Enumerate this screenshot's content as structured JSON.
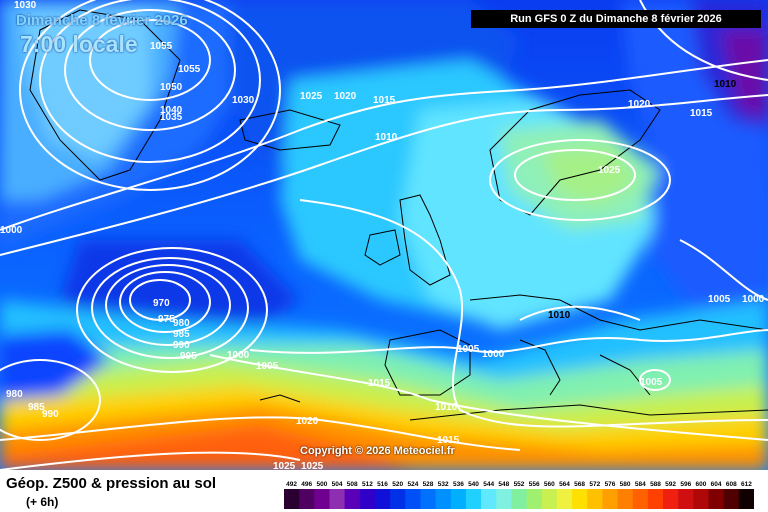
{
  "header": {
    "date_line": "Dimanche 8 février 2026",
    "time_line": "7:00 locale",
    "run_info": "Run GFS 0 Z du Dimanche 8 février 2026"
  },
  "footer": {
    "copyright": "Copyright © 2026 Meteociel.fr",
    "parameter_title": "Géop. Z500 & pression au sol",
    "lead_time": "(+ 6h)"
  },
  "legend": {
    "ticks": [
      "492",
      "496",
      "500",
      "504",
      "508",
      "512",
      "516",
      "520",
      "524",
      "528",
      "532",
      "536",
      "540",
      "544",
      "548",
      "552",
      "556",
      "560",
      "564",
      "568",
      "572",
      "576",
      "580",
      "584",
      "588",
      "592",
      "596",
      "600",
      "604",
      "608",
      "612"
    ],
    "colors": [
      "#2a0030",
      "#500060",
      "#700090",
      "#8d2fb0",
      "#5a00b8",
      "#3000c8",
      "#1010d8",
      "#0030e8",
      "#0050f8",
      "#0070ff",
      "#0090ff",
      "#00b0ff",
      "#20d0ff",
      "#60e8ff",
      "#80f0e0",
      "#80f0a0",
      "#a0f070",
      "#c8f050",
      "#f0f040",
      "#ffe000",
      "#ffc000",
      "#ffa000",
      "#ff8000",
      "#ff6000",
      "#ff4000",
      "#f02010",
      "#d01010",
      "#b00808",
      "#800000",
      "#500000",
      "#100000"
    ]
  },
  "isobars": [
    {
      "text": "1030"
    },
    {
      "text": "1055"
    },
    {
      "text": "1055"
    },
    {
      "text": "1050"
    },
    {
      "text": "1040"
    },
    {
      "text": "1035"
    },
    {
      "text": "1030"
    },
    {
      "text": "1025"
    },
    {
      "text": "1020"
    },
    {
      "text": "1015"
    },
    {
      "text": "1010"
    },
    {
      "text": "1020"
    },
    {
      "text": "1010"
    },
    {
      "text": "1015"
    },
    {
      "text": "1025"
    },
    {
      "text": "1000"
    },
    {
      "text": "970"
    },
    {
      "text": "975"
    },
    {
      "text": "980"
    },
    {
      "text": "985"
    },
    {
      "text": "990"
    },
    {
      "text": "995"
    },
    {
      "text": "1000"
    },
    {
      "text": "1005"
    },
    {
      "text": "1010"
    },
    {
      "text": "1005"
    },
    {
      "text": "1000"
    },
    {
      "text": "1005"
    },
    {
      "text": "1000"
    },
    {
      "text": "1005"
    },
    {
      "text": "1015"
    },
    {
      "text": "1010"
    },
    {
      "text": "980"
    },
    {
      "text": "985"
    },
    {
      "text": "990"
    },
    {
      "text": "1020"
    },
    {
      "text": "1015"
    },
    {
      "text": "1025"
    },
    {
      "text": "1025"
    }
  ]
}
